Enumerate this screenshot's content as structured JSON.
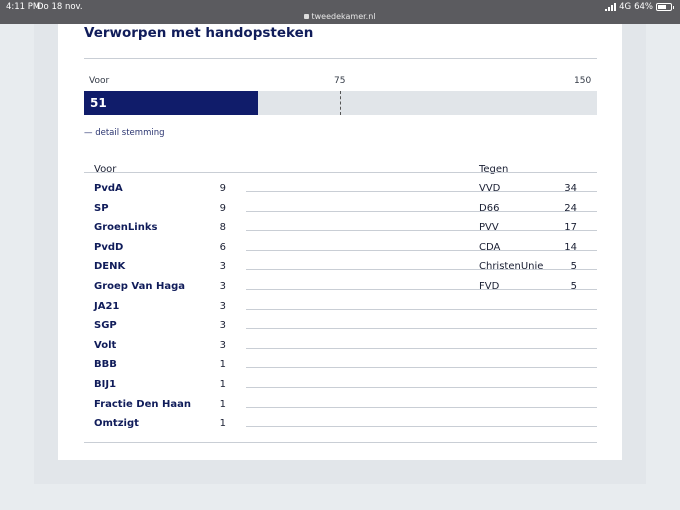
{
  "status": {
    "time": "4:11 PM",
    "date": "Do 18 nov.",
    "url": "tweedekamer.nl",
    "network": "4G",
    "battery": "64%",
    "battery_level": 0.64
  },
  "vote": {
    "title": "Verworpen met handopsteken",
    "label_voor": "Voor",
    "label_mid": "75",
    "label_max": "150",
    "voor_value": "51",
    "voor_count": 51,
    "total": 150,
    "detail_link": "— detail stemming"
  },
  "voor": {
    "header": "Voor",
    "parties": [
      {
        "name": "PvdA",
        "count": "9"
      },
      {
        "name": "SP",
        "count": "9"
      },
      {
        "name": "GroenLinks",
        "count": "8"
      },
      {
        "name": "PvdD",
        "count": "6"
      },
      {
        "name": "DENK",
        "count": "3"
      },
      {
        "name": "Groep Van Haga",
        "count": "3"
      },
      {
        "name": "JA21",
        "count": "3"
      },
      {
        "name": "SGP",
        "count": "3"
      },
      {
        "name": "Volt",
        "count": "3"
      },
      {
        "name": "BBB",
        "count": "1"
      },
      {
        "name": "BIJ1",
        "count": "1"
      },
      {
        "name": "Fractie Den Haan",
        "count": "1"
      },
      {
        "name": "Omtzigt",
        "count": "1"
      }
    ]
  },
  "tegen": {
    "header": "Tegen",
    "parties": [
      {
        "name": "VVD",
        "count": "34"
      },
      {
        "name": "D66",
        "count": "24"
      },
      {
        "name": "PVV",
        "count": "17"
      },
      {
        "name": "CDA",
        "count": "14"
      },
      {
        "name": "ChristenUnie",
        "count": "5"
      },
      {
        "name": "FVD",
        "count": "5"
      }
    ]
  },
  "colors": {
    "navy": "#101c6a",
    "track": "#e1e5e9"
  }
}
